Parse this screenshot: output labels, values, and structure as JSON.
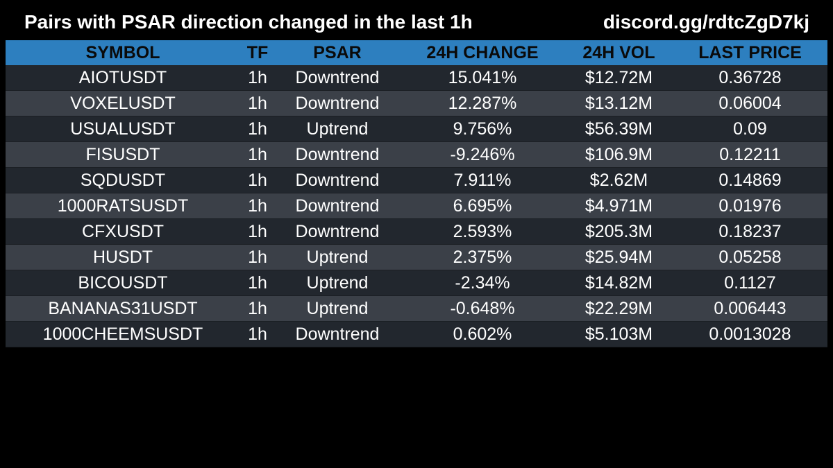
{
  "header": {
    "title": "Pairs with PSAR direction changed in the last 1h",
    "link": "discord.gg/rdtcZgD7kj"
  },
  "table": {
    "columns": [
      "SYMBOL",
      "TF",
      "PSAR",
      "24H CHANGE",
      "24H VOL",
      "LAST PRICE"
    ],
    "rows": [
      [
        "AIOTUSDT",
        "1h",
        "Downtrend",
        "15.041%",
        "$12.72M",
        "0.36728"
      ],
      [
        "VOXELUSDT",
        "1h",
        "Downtrend",
        "12.287%",
        "$13.12M",
        "0.06004"
      ],
      [
        "USUALUSDT",
        "1h",
        "Uptrend",
        "9.756%",
        "$56.39M",
        "0.09"
      ],
      [
        "FISUSDT",
        "1h",
        "Downtrend",
        "-9.246%",
        "$106.9M",
        "0.12211"
      ],
      [
        "SQDUSDT",
        "1h",
        "Downtrend",
        "7.911%",
        "$2.62M",
        "0.14869"
      ],
      [
        "1000RATSUSDT",
        "1h",
        "Downtrend",
        "6.695%",
        "$4.971M",
        "0.01976"
      ],
      [
        "CFXUSDT",
        "1h",
        "Downtrend",
        "2.593%",
        "$205.3M",
        "0.18237"
      ],
      [
        "HUSDT",
        "1h",
        "Uptrend",
        "2.375%",
        "$25.94M",
        "0.05258"
      ],
      [
        "BICOUSDT",
        "1h",
        "Uptrend",
        "-2.34%",
        "$14.82M",
        "0.1127"
      ],
      [
        "BANANAS31USDT",
        "1h",
        "Uptrend",
        "-0.648%",
        "$22.29M",
        "0.006443"
      ],
      [
        "1000CHEEMSUSDT",
        "1h",
        "Downtrend",
        "0.602%",
        "$5.103M",
        "0.0013028"
      ]
    ]
  },
  "colors": {
    "background": "#000000",
    "header_row": "#2d7fbf",
    "row_dark": "#22272e",
    "row_light": "#3b4048",
    "text": "#ffffff",
    "header_text": "#0a0a0a"
  }
}
